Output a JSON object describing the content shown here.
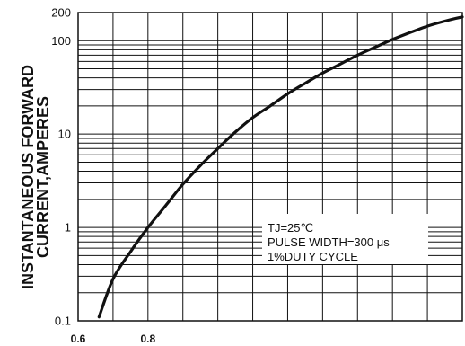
{
  "chart_data": {
    "type": "line",
    "title": "",
    "ylabel_lines": [
      "INSTANTANEOUS FORWARD",
      "CURRENT,AMPERES"
    ],
    "xlabel": "",
    "y_scale": "log",
    "ylim": [
      0.1,
      200
    ],
    "xlim": [
      0.6,
      1.7
    ],
    "y_tick_labels": [
      {
        "value": 200,
        "label": "200"
      },
      {
        "value": 100,
        "label": "100"
      },
      {
        "value": 10,
        "label": "10"
      },
      {
        "value": 1,
        "label": "1"
      },
      {
        "value": 0.1,
        "label": "0.1"
      }
    ],
    "x_tick_labels": [
      {
        "value": 0.6,
        "label": "0.6"
      },
      {
        "value": 0.8,
        "label": "0.8"
      }
    ],
    "x_gridlines": [
      0.6,
      0.7,
      0.8,
      0.9,
      1.0,
      1.1,
      1.2,
      1.3,
      1.4,
      1.5,
      1.6,
      1.7
    ],
    "grid": true,
    "series": [
      {
        "color": "#111111",
        "points": [
          {
            "x": 0.66,
            "y": 0.11
          },
          {
            "x": 0.7,
            "y": 0.28
          },
          {
            "x": 0.75,
            "y": 0.55
          },
          {
            "x": 0.8,
            "y": 1.0
          },
          {
            "x": 0.85,
            "y": 1.7
          },
          {
            "x": 0.9,
            "y": 2.9
          },
          {
            "x": 0.95,
            "y": 4.6
          },
          {
            "x": 1.0,
            "y": 7.0
          },
          {
            "x": 1.05,
            "y": 10.5
          },
          {
            "x": 1.1,
            "y": 15
          },
          {
            "x": 1.15,
            "y": 20
          },
          {
            "x": 1.2,
            "y": 27
          },
          {
            "x": 1.25,
            "y": 35
          },
          {
            "x": 1.3,
            "y": 45
          },
          {
            "x": 1.35,
            "y": 56
          },
          {
            "x": 1.4,
            "y": 70
          },
          {
            "x": 1.45,
            "y": 85
          },
          {
            "x": 1.5,
            "y": 103
          },
          {
            "x": 1.55,
            "y": 122
          },
          {
            "x": 1.6,
            "y": 143
          },
          {
            "x": 1.65,
            "y": 162
          },
          {
            "x": 1.7,
            "y": 180
          }
        ]
      }
    ],
    "annotations": [
      "TJ=25℃",
      "PULSE WIDTH=300 μs",
      "1%DUTY CYCLE"
    ],
    "annotation_box_corner": "lower-right"
  }
}
